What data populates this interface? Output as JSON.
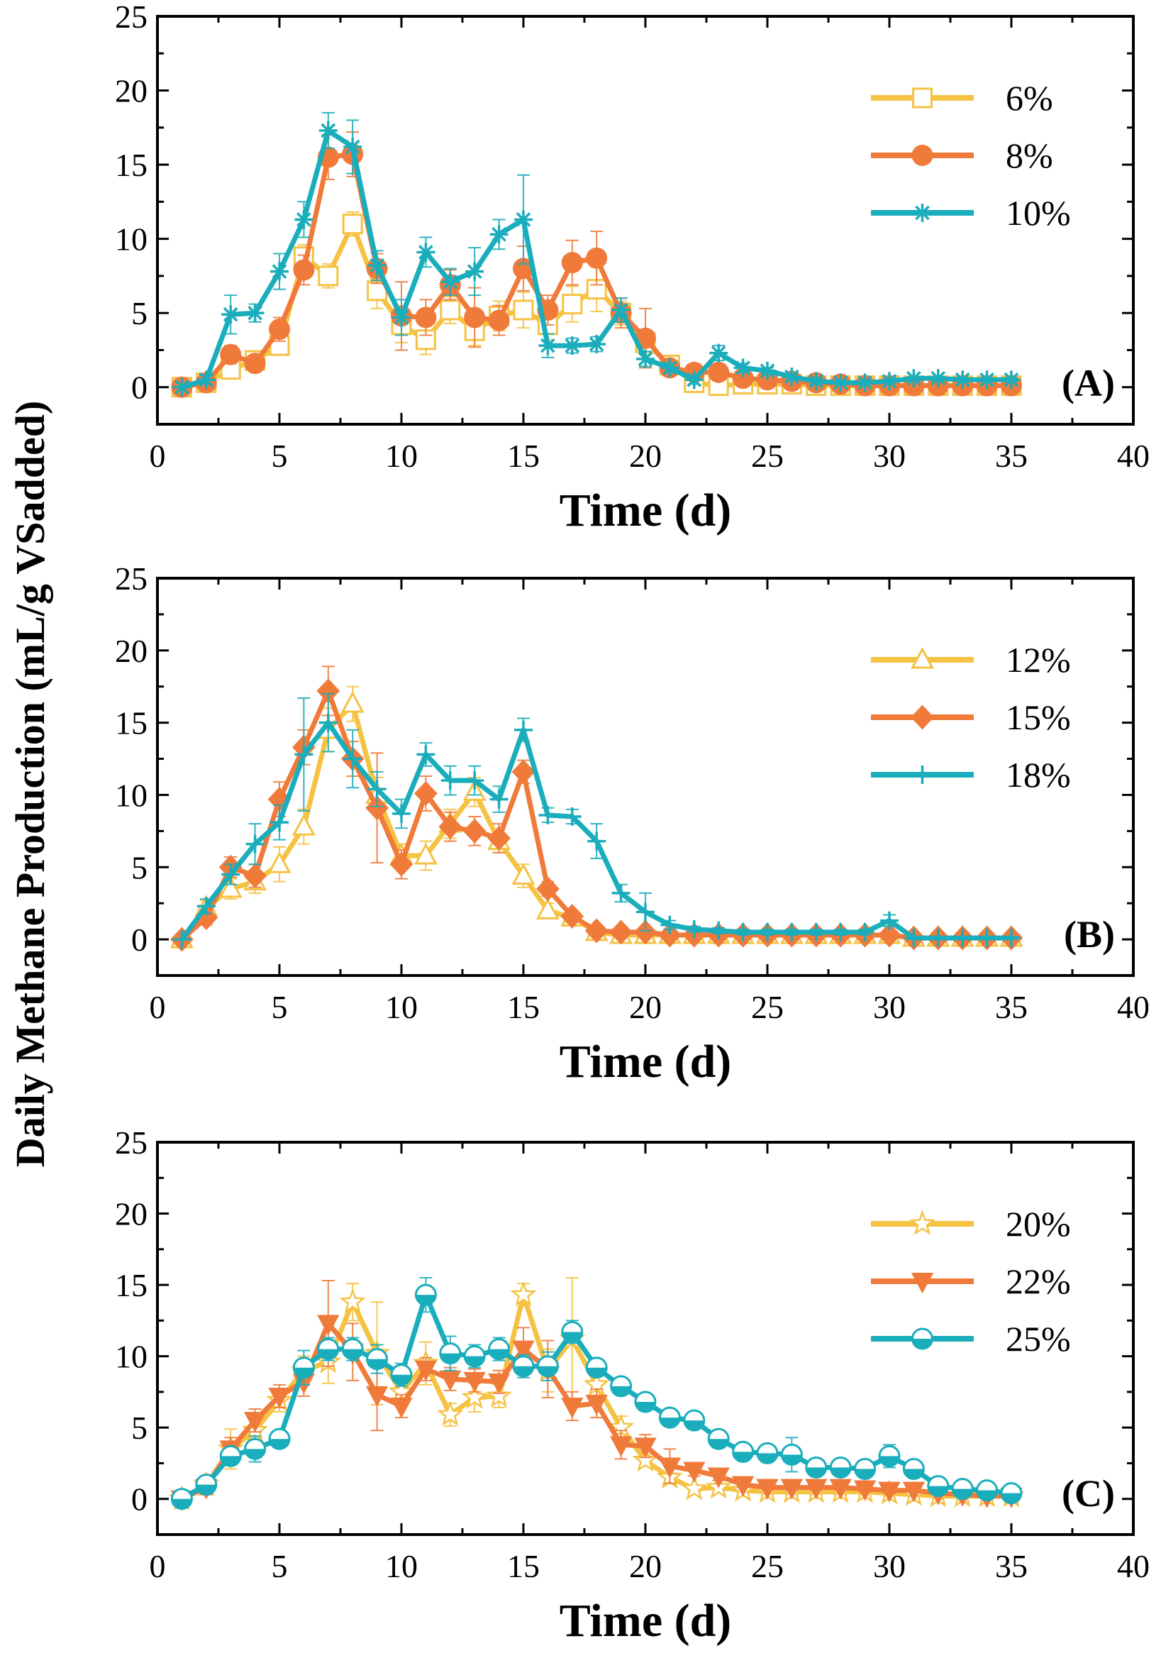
{
  "figure": {
    "ylabel": "Daily Methane Production (mL/g VSadded)"
  },
  "chart_data": [
    {
      "type": "line",
      "panel_label": "(A)",
      "xlabel": "Time (d)",
      "ylabel": "Daily Methane Production (mL/g VSadded)",
      "xlim": [
        0,
        40
      ],
      "ylim": [
        -2.5,
        25
      ],
      "xticks": [
        "0",
        "5",
        "10",
        "15",
        "20",
        "25",
        "30",
        "35",
        "40"
      ],
      "yticks": [
        "0",
        "5",
        "10",
        "15",
        "20",
        "25"
      ],
      "x": [
        1,
        2,
        3,
        4,
        5,
        6,
        7,
        8,
        9,
        10,
        11,
        12,
        13,
        14,
        15,
        16,
        17,
        18,
        19,
        20,
        21,
        22,
        23,
        24,
        25,
        26,
        27,
        28,
        29,
        30,
        31,
        32,
        33,
        34,
        35
      ],
      "legend_position": "top-right",
      "series": [
        {
          "name": "6%",
          "color": "#F5C242",
          "marker": "square-open",
          "values": [
            0,
            0.3,
            1.2,
            1.8,
            2.8,
            8.8,
            7.5,
            11,
            6.5,
            4.2,
            3.2,
            5.2,
            3.8,
            4.8,
            5.2,
            4.2,
            5.6,
            6.6,
            5,
            3,
            1.5,
            0.3,
            0.1,
            0.2,
            0.2,
            0.2,
            0.1,
            0.1,
            0.1,
            0.1,
            0.1,
            0.1,
            0.1,
            0.1,
            0.1
          ],
          "errors": [
            0,
            0,
            0.6,
            0.5,
            0.6,
            0.8,
            0.8,
            0.8,
            1.2,
            1.2,
            1,
            0.9,
            1,
            1,
            1.2,
            1,
            1.2,
            1.5,
            0.8,
            0.8,
            0.5,
            0.3,
            0.2,
            0.2,
            0.2,
            0.1,
            0.1,
            0.1,
            0.1,
            0.1,
            0.1,
            0.1,
            0.1,
            0.1,
            0.1
          ]
        },
        {
          "name": "8%",
          "color": "#F07A3A",
          "marker": "circle-filled",
          "values": [
            0,
            0.3,
            2.2,
            1.6,
            3.9,
            7.9,
            15.5,
            15.7,
            8,
            4.8,
            4.7,
            6.9,
            4.7,
            4.5,
            8,
            5.2,
            8.4,
            8.7,
            5,
            3.3,
            1.3,
            1,
            1,
            0.6,
            0.5,
            0.4,
            0.3,
            0.2,
            0.1,
            0.1,
            0.1,
            0.1,
            0.1,
            0.1,
            0.1
          ],
          "errors": [
            0,
            0,
            0.6,
            0.5,
            0.8,
            1,
            1.5,
            1.5,
            1,
            2.3,
            1.2,
            1,
            2,
            1,
            1.5,
            1,
            1.5,
            1.8,
            1,
            2,
            0.5,
            0.3,
            0.3,
            0.2,
            0.2,
            0.2,
            0.1,
            0.1,
            0.1,
            0.1,
            0.1,
            0.1,
            0.1,
            0.1,
            0.1
          ]
        },
        {
          "name": "10%",
          "color": "#1AADBC",
          "marker": "asterisk",
          "values": [
            0,
            0.5,
            4.9,
            5,
            7.8,
            11.3,
            17.3,
            16.2,
            8.2,
            4.7,
            9.1,
            7.1,
            7.8,
            10.3,
            11.3,
            2.8,
            2.8,
            2.9,
            5.2,
            1.9,
            1.3,
            0.5,
            2.3,
            1.3,
            1.1,
            0.7,
            0.4,
            0.3,
            0.3,
            0.4,
            0.6,
            0.6,
            0.5,
            0.5,
            0.5
          ],
          "errors": [
            0,
            0.3,
            1.3,
            0.6,
            1.2,
            1.2,
            1.2,
            1.8,
            1,
            1.2,
            1,
            0.9,
            1.6,
            1,
            3,
            0.8,
            0.5,
            0.5,
            0.8,
            0.5,
            0.3,
            0.3,
            0.5,
            0.3,
            0.2,
            0.2,
            0.2,
            0.1,
            0.1,
            0.1,
            0.1,
            0.1,
            0.1,
            0.1,
            0.1
          ]
        }
      ]
    },
    {
      "type": "line",
      "panel_label": "(B)",
      "xlabel": "Time (d)",
      "ylabel": "Daily Methane Production (mL/g VSadded)",
      "xlim": [
        0,
        40
      ],
      "ylim": [
        -2.5,
        25
      ],
      "xticks": [
        "0",
        "5",
        "10",
        "15",
        "20",
        "25",
        "30",
        "35",
        "40"
      ],
      "yticks": [
        "0",
        "5",
        "10",
        "15",
        "20",
        "25"
      ],
      "x": [
        1,
        2,
        3,
        4,
        5,
        6,
        7,
        8,
        9,
        10,
        11,
        12,
        13,
        14,
        15,
        16,
        17,
        18,
        19,
        20,
        21,
        22,
        23,
        24,
        25,
        26,
        27,
        28,
        29,
        30,
        31,
        32,
        33,
        34,
        35
      ],
      "legend_position": "top-right",
      "series": [
        {
          "name": "12%",
          "color": "#F5C242",
          "marker": "triangle-open",
          "values": [
            0,
            2.2,
            3.5,
            4,
            5.2,
            7.8,
            14.5,
            16.3,
            10,
            5.8,
            5.8,
            8,
            10.2,
            6.8,
            4.4,
            2,
            1.5,
            0.5,
            0.3,
            0.3,
            0.3,
            0.3,
            0.3,
            0.3,
            0.3,
            0.3,
            0.3,
            0.3,
            0.3,
            0.3,
            0.1,
            0.1,
            0.1,
            0.1,
            0.1
          ],
          "errors": [
            0,
            0.5,
            0.7,
            0.8,
            1.2,
            1.2,
            1.5,
            1.2,
            1.2,
            0.8,
            1,
            1,
            1,
            0.8,
            0.8,
            0.5,
            0.4,
            0.2,
            0.2,
            0.2,
            0.2,
            0.2,
            0.2,
            0.2,
            0.2,
            0.2,
            0.2,
            0.2,
            0.2,
            0.2,
            0.1,
            0.1,
            0.1,
            0.1,
            0.1
          ]
        },
        {
          "name": "15%",
          "color": "#F07A3A",
          "marker": "diamond-filled",
          "values": [
            0,
            1.5,
            5,
            4.4,
            9.7,
            13.3,
            17.2,
            12.5,
            9.1,
            5.2,
            10.1,
            7.8,
            7.5,
            7,
            11.6,
            3.5,
            1.6,
            0.6,
            0.5,
            0.5,
            0.3,
            0.3,
            0.3,
            0.3,
            0.3,
            0.3,
            0.3,
            0.3,
            0.3,
            0.3,
            0.1,
            0.1,
            0.1,
            0.1,
            0.1
          ],
          "errors": [
            0,
            0.5,
            0.7,
            0.8,
            1.2,
            1.2,
            1.7,
            1.2,
            3.8,
            1,
            1.2,
            1,
            1,
            1,
            0.8,
            0.5,
            0.4,
            0.2,
            0.2,
            0.2,
            0.2,
            0.2,
            0.2,
            0.2,
            0.2,
            0.2,
            0.2,
            0.2,
            0.2,
            0.2,
            0.1,
            0.1,
            0.1,
            0.1,
            0.1
          ]
        },
        {
          "name": "18%",
          "color": "#1AADBC",
          "marker": "plus",
          "values": [
            0,
            2.3,
            4.5,
            6.6,
            8.1,
            12.8,
            15,
            12.5,
            10.4,
            8.7,
            12.8,
            11,
            11,
            9.7,
            14.5,
            8.6,
            8.5,
            6.8,
            3.2,
            1.9,
            1,
            0.7,
            0.6,
            0.5,
            0.5,
            0.5,
            0.5,
            0.5,
            0.5,
            1.3,
            0.1,
            0.1,
            0.1,
            0.1,
            0.1
          ],
          "errors": [
            0,
            0.5,
            0.7,
            1.4,
            1.2,
            3.9,
            2,
            2,
            1.2,
            1,
            0.8,
            1,
            1,
            0.9,
            0.8,
            0.5,
            0.5,
            1.2,
            0.6,
            1.3,
            0.3,
            0.2,
            0.2,
            0.2,
            0.2,
            0.2,
            0.2,
            0.2,
            0.2,
            0.4,
            0.1,
            0.1,
            0.1,
            0.1,
            0.1
          ]
        }
      ]
    },
    {
      "type": "line",
      "panel_label": "(C)",
      "xlabel": "Time (d)",
      "ylabel": "Daily Methane Production (mL/g VSadded)",
      "xlim": [
        0,
        40
      ],
      "ylim": [
        -2.5,
        25
      ],
      "xticks": [
        "0",
        "5",
        "10",
        "15",
        "20",
        "25",
        "30",
        "35",
        "40"
      ],
      "yticks": [
        "0",
        "5",
        "10",
        "15",
        "20",
        "25"
      ],
      "x": [
        1,
        2,
        3,
        4,
        5,
        6,
        7,
        8,
        9,
        10,
        11,
        12,
        13,
        14,
        15,
        16,
        17,
        18,
        19,
        20,
        21,
        22,
        23,
        24,
        25,
        26,
        27,
        28,
        29,
        30,
        31,
        32,
        33,
        34,
        35
      ],
      "legend_position": "top-right",
      "series": [
        {
          "name": "20%",
          "color": "#F5C242",
          "marker": "star-open",
          "values": [
            0,
            1,
            3.5,
            4.8,
            6.9,
            9,
            9.6,
            13.8,
            10.2,
            7.5,
            9.5,
            5.9,
            7.1,
            7.2,
            14.3,
            9,
            11.2,
            8,
            5,
            2.7,
            1.5,
            0.7,
            0.8,
            0.6,
            0.5,
            0.5,
            0.5,
            0.5,
            0.5,
            0.4,
            0.3,
            0.2,
            0.2,
            0.2,
            0.2
          ],
          "errors": [
            0,
            0.5,
            1.4,
            0.8,
            0.8,
            1,
            1.5,
            1.3,
            3.6,
            0.8,
            1.5,
            0.8,
            1,
            0.8,
            0.8,
            1.5,
            4.3,
            1,
            0.8,
            0.4,
            0.3,
            0.2,
            0.2,
            0.2,
            0.2,
            0.2,
            0.2,
            0.2,
            0.2,
            0.1,
            0.1,
            0.1,
            0.1,
            0.1,
            0.1
          ]
        },
        {
          "name": "22%",
          "color": "#F07A3A",
          "marker": "triangle-down-filled",
          "values": [
            0,
            0.8,
            3.5,
            5.5,
            7.2,
            8.2,
            12.3,
            10.3,
            7.3,
            6.5,
            9.1,
            8.4,
            8.3,
            8.2,
            10.5,
            9.1,
            6.5,
            6.7,
            3.8,
            3.7,
            2.3,
            2,
            1.6,
            1,
            0.8,
            0.8,
            0.8,
            0.8,
            0.7,
            0.6,
            0.6,
            0.4,
            0.3,
            0.2,
            0.2
          ],
          "errors": [
            0,
            0.5,
            0.8,
            0.8,
            0.8,
            1,
            3,
            2,
            2.5,
            0.8,
            0.8,
            0.8,
            0.8,
            0.8,
            1.5,
            2,
            1,
            1,
            1,
            0.8,
            1.2,
            0.4,
            0.3,
            0.2,
            0.2,
            0.2,
            0.2,
            0.2,
            0.2,
            0.2,
            0.1,
            0.1,
            0.1,
            0.1,
            0.1
          ]
        },
        {
          "name": "25%",
          "color": "#1AADBC",
          "marker": "circle-half",
          "values": [
            0,
            1,
            3,
            3.5,
            4.2,
            9.2,
            10.5,
            10.5,
            9.8,
            8.7,
            14.3,
            10.2,
            10,
            10.5,
            9.3,
            9.3,
            11.7,
            9.2,
            7.9,
            6.8,
            5.7,
            5.5,
            4.2,
            3.3,
            3.2,
            3.1,
            2.2,
            2.2,
            2.1,
            3,
            2.1,
            0.9,
            0.7,
            0.6,
            0.4
          ],
          "errors": [
            0,
            0.3,
            0.6,
            0.9,
            0.5,
            1.2,
            0.8,
            0.8,
            1,
            0.8,
            1.2,
            1.2,
            0.8,
            0.8,
            0.8,
            1,
            0.8,
            0.5,
            0.5,
            0.5,
            0.4,
            0.4,
            0.4,
            0.3,
            0.3,
            1.2,
            0.3,
            0.3,
            0.3,
            0.8,
            0.3,
            0.2,
            0.2,
            0.1,
            0.1
          ]
        }
      ]
    }
  ]
}
